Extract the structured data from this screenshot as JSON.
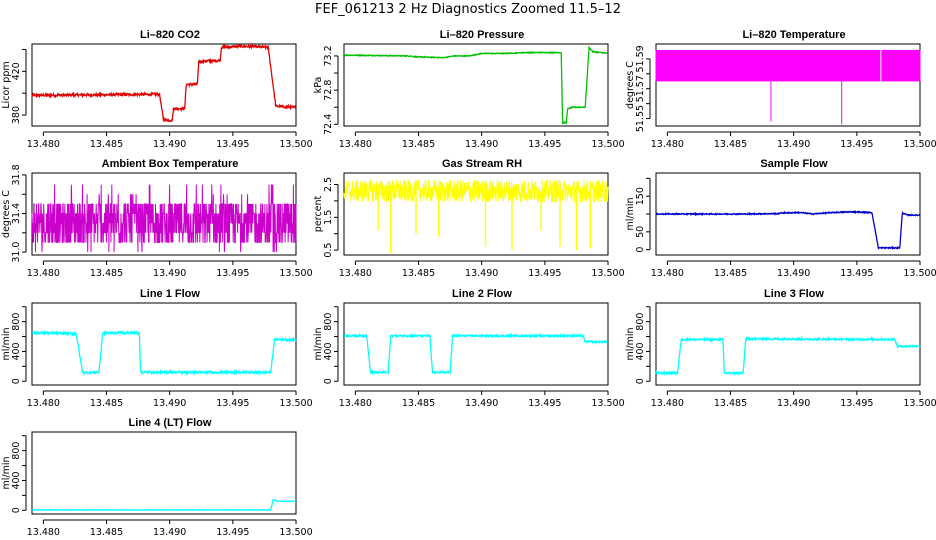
{
  "page_title": "FEF_061213  2 Hz Diagnostics Zoomed 11.5–12",
  "colors": {
    "red": "#e00000",
    "green": "#00c000",
    "magenta": "#ff00ff",
    "yellow": "#ffff00",
    "blue": "#0000cc",
    "cyan": "#00ffff"
  },
  "chart_data": [
    {
      "id": "co2",
      "type": "line",
      "title": "Li–820 CO2",
      "ylabel": "Licor ppm",
      "xlim": [
        13.4791,
        13.5
      ],
      "ylim": [
        370,
        445
      ],
      "xticks": [
        13.48,
        13.485,
        13.49,
        13.495,
        13.5
      ],
      "xtick_labels": [
        "13.480",
        "13.485",
        "13.490",
        "13.495",
        "13.500"
      ],
      "yticks": [
        380,
        400,
        420,
        440
      ],
      "ytick_labels": [
        "380",
        "",
        "420",
        ""
      ],
      "color": "#e00000",
      "noise": 1.2,
      "steps": [
        [
          13.479,
          398
        ],
        [
          13.4788,
          398
        ],
        [
          13.4892,
          399
        ],
        [
          13.4895,
          376
        ],
        [
          13.4902,
          375
        ],
        [
          13.4903,
          386
        ],
        [
          13.4912,
          386
        ],
        [
          13.4913,
          408
        ],
        [
          13.4922,
          408
        ],
        [
          13.4923,
          429
        ],
        [
          13.494,
          430
        ],
        [
          13.4941,
          442
        ],
        [
          13.4958,
          443
        ],
        [
          13.4978,
          442
        ],
        [
          13.4984,
          388
        ],
        [
          13.5,
          387
        ]
      ]
    },
    {
      "id": "pressure",
      "type": "line",
      "title": "Li–820 Pressure",
      "ylabel": "kPa",
      "xlim": [
        13.4791,
        13.5
      ],
      "ylim": [
        72.38,
        73.34
      ],
      "xticks": [
        13.48,
        13.485,
        13.49,
        13.495,
        13.5
      ],
      "xtick_labels": [
        "13.480",
        "13.485",
        "13.490",
        "13.495",
        "13.500"
      ],
      "yticks": [
        72.4,
        72.6,
        72.8,
        73.0,
        73.2
      ],
      "ytick_labels": [
        "72.4",
        "",
        "72.8",
        "",
        "73.2"
      ],
      "color": "#00c000",
      "noise": 0.005,
      "steps": [
        [
          13.4791,
          73.21
        ],
        [
          13.4843,
          73.2
        ],
        [
          13.4848,
          73.19
        ],
        [
          13.487,
          73.18
        ],
        [
          13.4878,
          73.2
        ],
        [
          13.489,
          73.2
        ],
        [
          13.49,
          73.23
        ],
        [
          13.492,
          73.23
        ],
        [
          13.4935,
          73.24
        ],
        [
          13.495,
          73.24
        ],
        [
          13.4963,
          73.24
        ],
        [
          13.4964,
          72.42
        ],
        [
          13.4967,
          72.42
        ],
        [
          13.4968,
          72.58
        ],
        [
          13.4972,
          72.6
        ],
        [
          13.4982,
          72.6
        ],
        [
          13.4985,
          73.3
        ],
        [
          13.4988,
          73.25
        ],
        [
          13.5,
          73.23
        ]
      ]
    },
    {
      "id": "li820temp",
      "type": "line",
      "title": "Li–820 Temperature",
      "ylabel": "degrees C",
      "xlim": [
        13.4791,
        13.5
      ],
      "ylim": [
        51.545,
        51.6
      ],
      "xticks": [
        13.48,
        13.485,
        13.49,
        13.495,
        13.5
      ],
      "xtick_labels": [
        "13.480",
        "13.485",
        "13.490",
        "13.495",
        "13.500"
      ],
      "yticks": [
        51.55,
        51.56,
        51.57,
        51.58,
        51.59
      ],
      "ytick_labels": [
        "51.55",
        "",
        "51.57",
        "",
        "51.59"
      ],
      "color": "#ff00ff",
      "band_low": 51.575,
      "band_high": 51.596,
      "spikes": [
        [
          13.4882,
          51.548
        ],
        [
          13.4938,
          51.546
        ]
      ]
    },
    {
      "id": "ambbox",
      "type": "line",
      "title": "Ambient Box Temperature",
      "ylabel": "degrees C",
      "xlim": [
        13.4791,
        13.5
      ],
      "ylim": [
        30.97,
        31.82
      ],
      "xticks": [
        13.48,
        13.485,
        13.49,
        13.495,
        13.5
      ],
      "xtick_labels": [
        "13.480",
        "13.485",
        "13.490",
        "13.495",
        "13.500"
      ],
      "yticks": [
        31.0,
        31.2,
        31.4,
        31.6,
        31.8
      ],
      "ytick_labels": [
        "31.0",
        "",
        "31.4",
        "",
        "31.8"
      ],
      "color": "#cc00cc",
      "levels": [
        31.1,
        31.2,
        31.3,
        31.4,
        31.5
      ],
      "spike_levels": [
        31.0,
        31.6,
        31.7
      ]
    },
    {
      "id": "rh",
      "type": "line",
      "title": "Gas Stream RH",
      "ylabel": "percent",
      "xlim": [
        13.4791,
        13.5
      ],
      "ylim": [
        0.35,
        2.85
      ],
      "xticks": [
        13.48,
        13.485,
        13.49,
        13.495,
        13.5
      ],
      "xtick_labels": [
        "13.480",
        "13.485",
        "13.490",
        "13.495",
        "13.500"
      ],
      "yticks": [
        0.5,
        1.0,
        1.5,
        2.0,
        2.5
      ],
      "ytick_labels": [
        "0.5",
        "",
        "1.5",
        "",
        "2.5"
      ],
      "color": "#ffff00",
      "base": 2.3,
      "spread": 0.35,
      "dips": [
        [
          13.4818,
          1.1
        ],
        [
          13.4828,
          0.4
        ],
        [
          13.4848,
          1.0
        ],
        [
          13.4866,
          0.9
        ],
        [
          13.4903,
          0.6
        ],
        [
          13.4924,
          0.5
        ],
        [
          13.4947,
          1.1
        ],
        [
          13.4962,
          0.6
        ],
        [
          13.4975,
          0.5
        ],
        [
          13.4986,
          0.55
        ]
      ]
    },
    {
      "id": "sampleflow",
      "type": "line",
      "title": "Sample Flow",
      "ylabel": "ml/min",
      "xlim": [
        13.4791,
        13.5
      ],
      "ylim": [
        -15,
        215
      ],
      "xticks": [
        13.48,
        13.485,
        13.49,
        13.495,
        13.5
      ],
      "xtick_labels": [
        "13.480",
        "13.485",
        "13.490",
        "13.495",
        "13.500"
      ],
      "yticks": [
        0,
        50,
        100,
        150,
        200
      ],
      "ytick_labels": [
        "0",
        "50",
        "",
        "150",
        ""
      ],
      "color": "#0000cc",
      "noise": 1.5,
      "steps": [
        [
          13.4791,
          100
        ],
        [
          13.486,
          100
        ],
        [
          13.4888,
          101
        ],
        [
          13.489,
          103
        ],
        [
          13.4905,
          104
        ],
        [
          13.4915,
          100
        ],
        [
          13.493,
          104
        ],
        [
          13.4945,
          106
        ],
        [
          13.4962,
          104
        ],
        [
          13.4967,
          5
        ],
        [
          13.4975,
          5
        ],
        [
          13.4984,
          5
        ],
        [
          13.4986,
          103
        ],
        [
          13.499,
          97
        ],
        [
          13.5,
          97
        ]
      ]
    },
    {
      "id": "line1",
      "type": "line",
      "title": "Line 1 Flow",
      "ylabel": "ml/min",
      "xlim": [
        13.4791,
        13.5
      ],
      "ylim": [
        -50,
        1050
      ],
      "xticks": [
        13.48,
        13.485,
        13.49,
        13.495,
        13.5
      ],
      "xtick_labels": [
        "13.480",
        "13.485",
        "13.490",
        "13.495",
        "13.500"
      ],
      "yticks": [
        0,
        200,
        400,
        600,
        800,
        1000
      ],
      "ytick_labels": [
        "0",
        "",
        "400",
        "",
        "800",
        ""
      ],
      "color": "#00ffff",
      "noise": 15,
      "steps": [
        [
          13.4791,
          650
        ],
        [
          13.4826,
          640
        ],
        [
          13.4831,
          120
        ],
        [
          13.4844,
          120
        ],
        [
          13.4847,
          650
        ],
        [
          13.4876,
          650
        ],
        [
          13.4877,
          120
        ],
        [
          13.498,
          120
        ],
        [
          13.4983,
          560
        ],
        [
          13.5,
          560
        ]
      ]
    },
    {
      "id": "line2",
      "type": "line",
      "title": "Line 2 Flow",
      "ylabel": "ml/min",
      "xlim": [
        13.4791,
        13.5
      ],
      "ylim": [
        -50,
        1050
      ],
      "xticks": [
        13.48,
        13.485,
        13.49,
        13.495,
        13.5
      ],
      "xtick_labels": [
        "13.480",
        "13.485",
        "13.490",
        "13.495",
        "13.500"
      ],
      "yticks": [
        0,
        200,
        400,
        600,
        800,
        1000
      ],
      "ytick_labels": [
        "0",
        "",
        "400",
        "",
        "800",
        ""
      ],
      "color": "#00ffff",
      "noise": 12,
      "steps": [
        [
          13.4791,
          610
        ],
        [
          13.4809,
          610
        ],
        [
          13.4812,
          120
        ],
        [
          13.4826,
          120
        ],
        [
          13.4828,
          610
        ],
        [
          13.4859,
          610
        ],
        [
          13.4861,
          120
        ],
        [
          13.4875,
          120
        ],
        [
          13.4877,
          610
        ],
        [
          13.498,
          610
        ],
        [
          13.4982,
          530
        ],
        [
          13.5,
          530
        ]
      ]
    },
    {
      "id": "line3",
      "type": "line",
      "title": "Line 3 Flow",
      "ylabel": "ml/min",
      "xlim": [
        13.4791,
        13.5
      ],
      "ylim": [
        -50,
        1050
      ],
      "xticks": [
        13.48,
        13.485,
        13.49,
        13.495,
        13.5
      ],
      "xtick_labels": [
        "13.480",
        "13.485",
        "13.490",
        "13.495",
        "13.500"
      ],
      "yticks": [
        0,
        200,
        400,
        600,
        800,
        1000
      ],
      "ytick_labels": [
        "0",
        "",
        "400",
        "",
        "800",
        ""
      ],
      "color": "#00ffff",
      "noise": 12,
      "steps": [
        [
          13.4791,
          110
        ],
        [
          13.4808,
          110
        ],
        [
          13.4811,
          560
        ],
        [
          13.4844,
          560
        ],
        [
          13.4845,
          110
        ],
        [
          13.486,
          110
        ],
        [
          13.4862,
          570
        ],
        [
          13.498,
          560
        ],
        [
          13.4982,
          470
        ],
        [
          13.5,
          470
        ]
      ]
    },
    {
      "id": "line4",
      "type": "line",
      "title": "Line 4 (LT) Flow",
      "ylabel": "ml/min",
      "xlim": [
        13.4791,
        13.5
      ],
      "ylim": [
        -50,
        1050
      ],
      "xticks": [
        13.48,
        13.485,
        13.49,
        13.495,
        13.5
      ],
      "xtick_labels": [
        "13.480",
        "13.485",
        "13.490",
        "13.495",
        "13.500"
      ],
      "yticks": [
        0,
        200,
        400,
        600,
        800,
        1000
      ],
      "ytick_labels": [
        "0",
        "",
        "400",
        "",
        "800",
        ""
      ],
      "color": "#00ffff",
      "noise": 3,
      "steps": [
        [
          13.4791,
          5
        ],
        [
          13.498,
          5
        ],
        [
          13.4982,
          150
        ],
        [
          13.4985,
          120
        ],
        [
          13.5,
          120
        ]
      ]
    }
  ]
}
